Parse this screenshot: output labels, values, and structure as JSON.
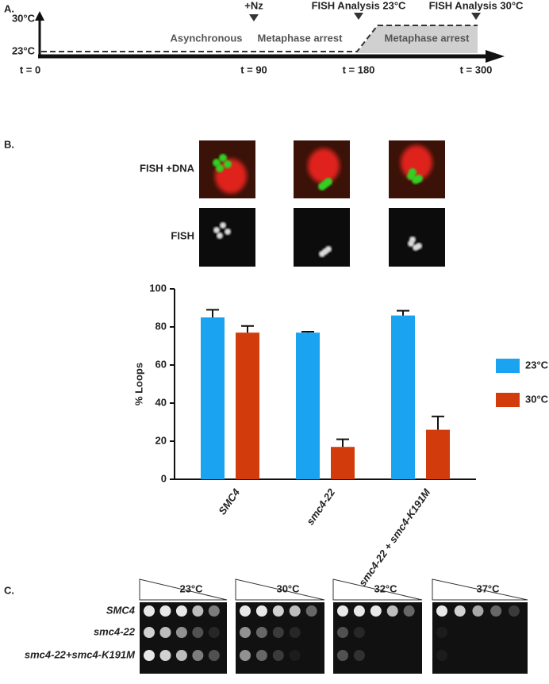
{
  "panel_a": {
    "label": "A.",
    "temps": [
      "30°C",
      "23°C"
    ],
    "events": [
      "+Nz",
      "FISH Analysis 23°C",
      "FISH Analysis 30°C"
    ],
    "phases": [
      "Asynchronous",
      "Metaphase arrest",
      "Metaphase arrest"
    ],
    "times": [
      "t = 0",
      "t = 90",
      "t = 180",
      "t = 300"
    ]
  },
  "panel_b": {
    "label": "B.",
    "row_labels": [
      "FISH +DNA",
      "FISH"
    ]
  },
  "chart_data": {
    "type": "bar",
    "ylabel": "% Loops",
    "categories": [
      "SMC4",
      "smc4-22",
      "smc4-22 + smc4-K191M"
    ],
    "series": [
      {
        "name": "23°C",
        "color": "#1aa3f0",
        "values": [
          85,
          77,
          86
        ],
        "errors": [
          4,
          0.5,
          2.5
        ]
      },
      {
        "name": "30°C",
        "color": "#d23c0c",
        "values": [
          77,
          17,
          26
        ],
        "errors": [
          3.5,
          4,
          7
        ]
      }
    ],
    "ylim": [
      0,
      100
    ],
    "yticks": [
      0,
      20,
      40,
      60,
      80,
      100
    ],
    "legend": "right"
  },
  "panel_c": {
    "label": "C.",
    "temps": [
      "23°C",
      "30°C",
      "32°C",
      "37°C"
    ],
    "strains": [
      "SMC4",
      "smc4-22",
      "smc4-22+smc4-K191M"
    ]
  }
}
